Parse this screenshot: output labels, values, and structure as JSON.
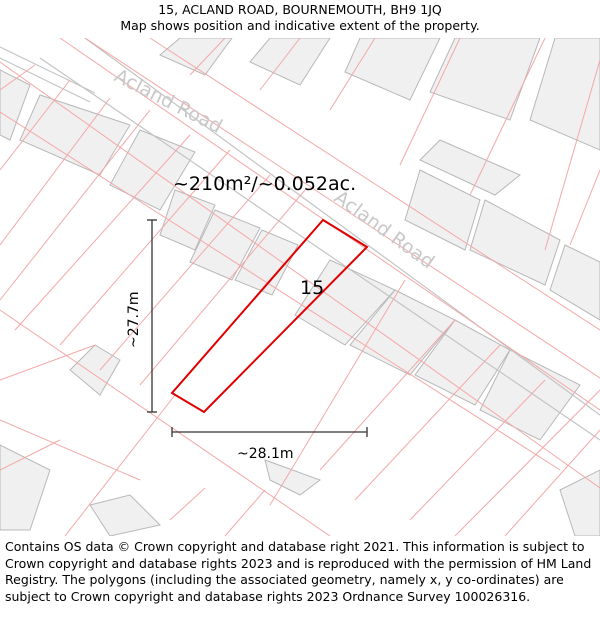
{
  "header": {
    "address": "15, ACLAND ROAD, BOURNEMOUTH, BH9 1JQ",
    "subtitle": "Map shows position and indicative extent of the property."
  },
  "map": {
    "road_name_1": "Acland Road",
    "road_name_2": "Acland Road",
    "area": "~210m²/~0.052ac.",
    "house_number": "15",
    "height_dimension": "~27.7m",
    "width_dimension": "~28.1m",
    "colors": {
      "plot_outline": "#e00000",
      "parcel_lines": "#f4a8a8",
      "building_fill": "#f0f0f0",
      "building_stroke": "#b8b8b8",
      "road_label": "#c8c8c8"
    }
  },
  "footer": {
    "attribution": "Contains OS data © Crown copyright and database right 2021. This information is subject to Crown copyright and database rights 2023 and is reproduced with the permission of HM Land Registry. The polygons (including the associated geometry, namely x, y co-ordinates) are subject to Crown copyright and database rights 2023 Ordnance Survey 100026316."
  }
}
